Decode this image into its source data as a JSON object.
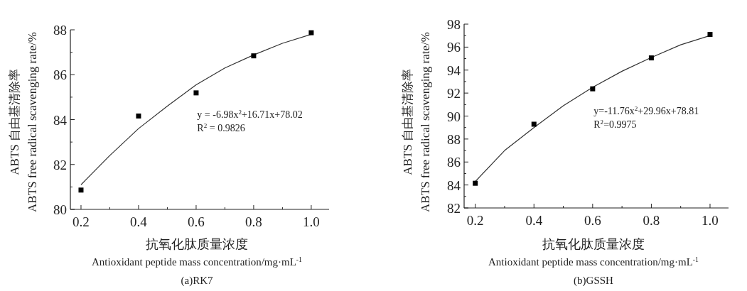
{
  "chart_data": [
    {
      "type": "scatter",
      "title": "(a)RK7",
      "xlabel": "抗氧化肽质量浓度\nAntioxidant peptide mass concentration/mg·mL$^{-1}$",
      "ylabel": "ABTS 自由基清除率\nABTS free radical scavenging rate/%",
      "xlim": [
        0.163,
        1.062
      ],
      "ylim": [
        80,
        88
      ],
      "xticks": [
        0.2,
        {
          "value": 0.3,
          "label": null
        },
        0.4,
        {
          "value": 0.5,
          "label": null
        },
        0.6,
        {
          "value": 0.7,
          "label": null
        },
        0.8,
        {
          "value": 0.9,
          "label": null
        },
        {
          "value": 1,
          "label": "1.0"
        }
      ],
      "yticks": [
        80,
        {
          "value": 81,
          "label": null
        },
        82,
        {
          "value": 83,
          "label": null
        },
        84,
        {
          "value": 85,
          "label": null
        },
        86,
        {
          "value": 87,
          "label": null
        },
        88
      ],
      "series": [
        {
          "type": "scatter",
          "marker": "square",
          "color": "#000000",
          "x": [
            0.2,
            0.4,
            0.6,
            0.8,
            1.0
          ],
          "values": [
            80.86,
            84.16,
            85.19,
            86.84,
            87.87
          ]
        },
        {
          "type": "line",
          "color": "#333333",
          "x": [
            0.2,
            0.3,
            0.4,
            0.5,
            0.6,
            0.7,
            0.8,
            0.9,
            1.0
          ],
          "values": [
            81.1,
            82.4,
            83.6,
            84.6,
            85.55,
            86.3,
            86.88,
            87.4,
            87.8
          ]
        }
      ],
      "annotations": [
        "y = -6.98x$^{2}$+16.71x+78.02",
        "R$^{2}$ = 0.9826"
      ]
    },
    {
      "type": "scatter",
      "title": "(b)GSSH",
      "xlabel": "抗氧化肽质量浓度\nAntioxidant peptide mass concentration/mg·mL$^{-1}$",
      "ylabel": "ABTS 自由基清除率\nABTS free radical scavenging rate/%",
      "xlim": [
        0.162,
        1.063
      ],
      "ylim": [
        82,
        98
      ],
      "xticks": [
        0.2,
        {
          "value": 0.3,
          "label": null
        },
        0.4,
        {
          "value": 0.5,
          "label": null
        },
        0.6,
        {
          "value": 0.7,
          "label": null
        },
        0.8,
        {
          "value": 0.9,
          "label": null
        },
        {
          "value": 1,
          "label": "1.0"
        }
      ],
      "yticks": [
        82,
        {
          "value": 83,
          "label": null
        },
        84,
        {
          "value": 85,
          "label": null
        },
        86,
        {
          "value": 87,
          "label": null
        },
        88,
        {
          "value": 89,
          "label": null
        },
        90,
        {
          "value": 91,
          "label": null
        },
        92,
        {
          "value": 93,
          "label": null
        },
        94,
        {
          "value": 95,
          "label": null
        },
        96,
        {
          "value": 97,
          "label": null
        },
        98
      ],
      "series": [
        {
          "type": "scatter",
          "marker": "square",
          "color": "#000000",
          "x": [
            0.2,
            0.4,
            0.6,
            0.8,
            1.0
          ],
          "values": [
            84.15,
            89.29,
            92.37,
            95.06,
            97.1
          ]
        },
        {
          "type": "line",
          "color": "#333333",
          "x": [
            0.2,
            0.3,
            0.4,
            0.5,
            0.6,
            0.7,
            0.8,
            0.9,
            1.0
          ],
          "values": [
            84.3,
            87.0,
            89.0,
            90.9,
            92.5,
            93.9,
            95.1,
            96.2,
            97.0
          ]
        }
      ],
      "annotations": [
        "y=-11.76x$^{2}$+29.96x+78.81",
        "R$^{2}$=0.9975"
      ]
    }
  ]
}
